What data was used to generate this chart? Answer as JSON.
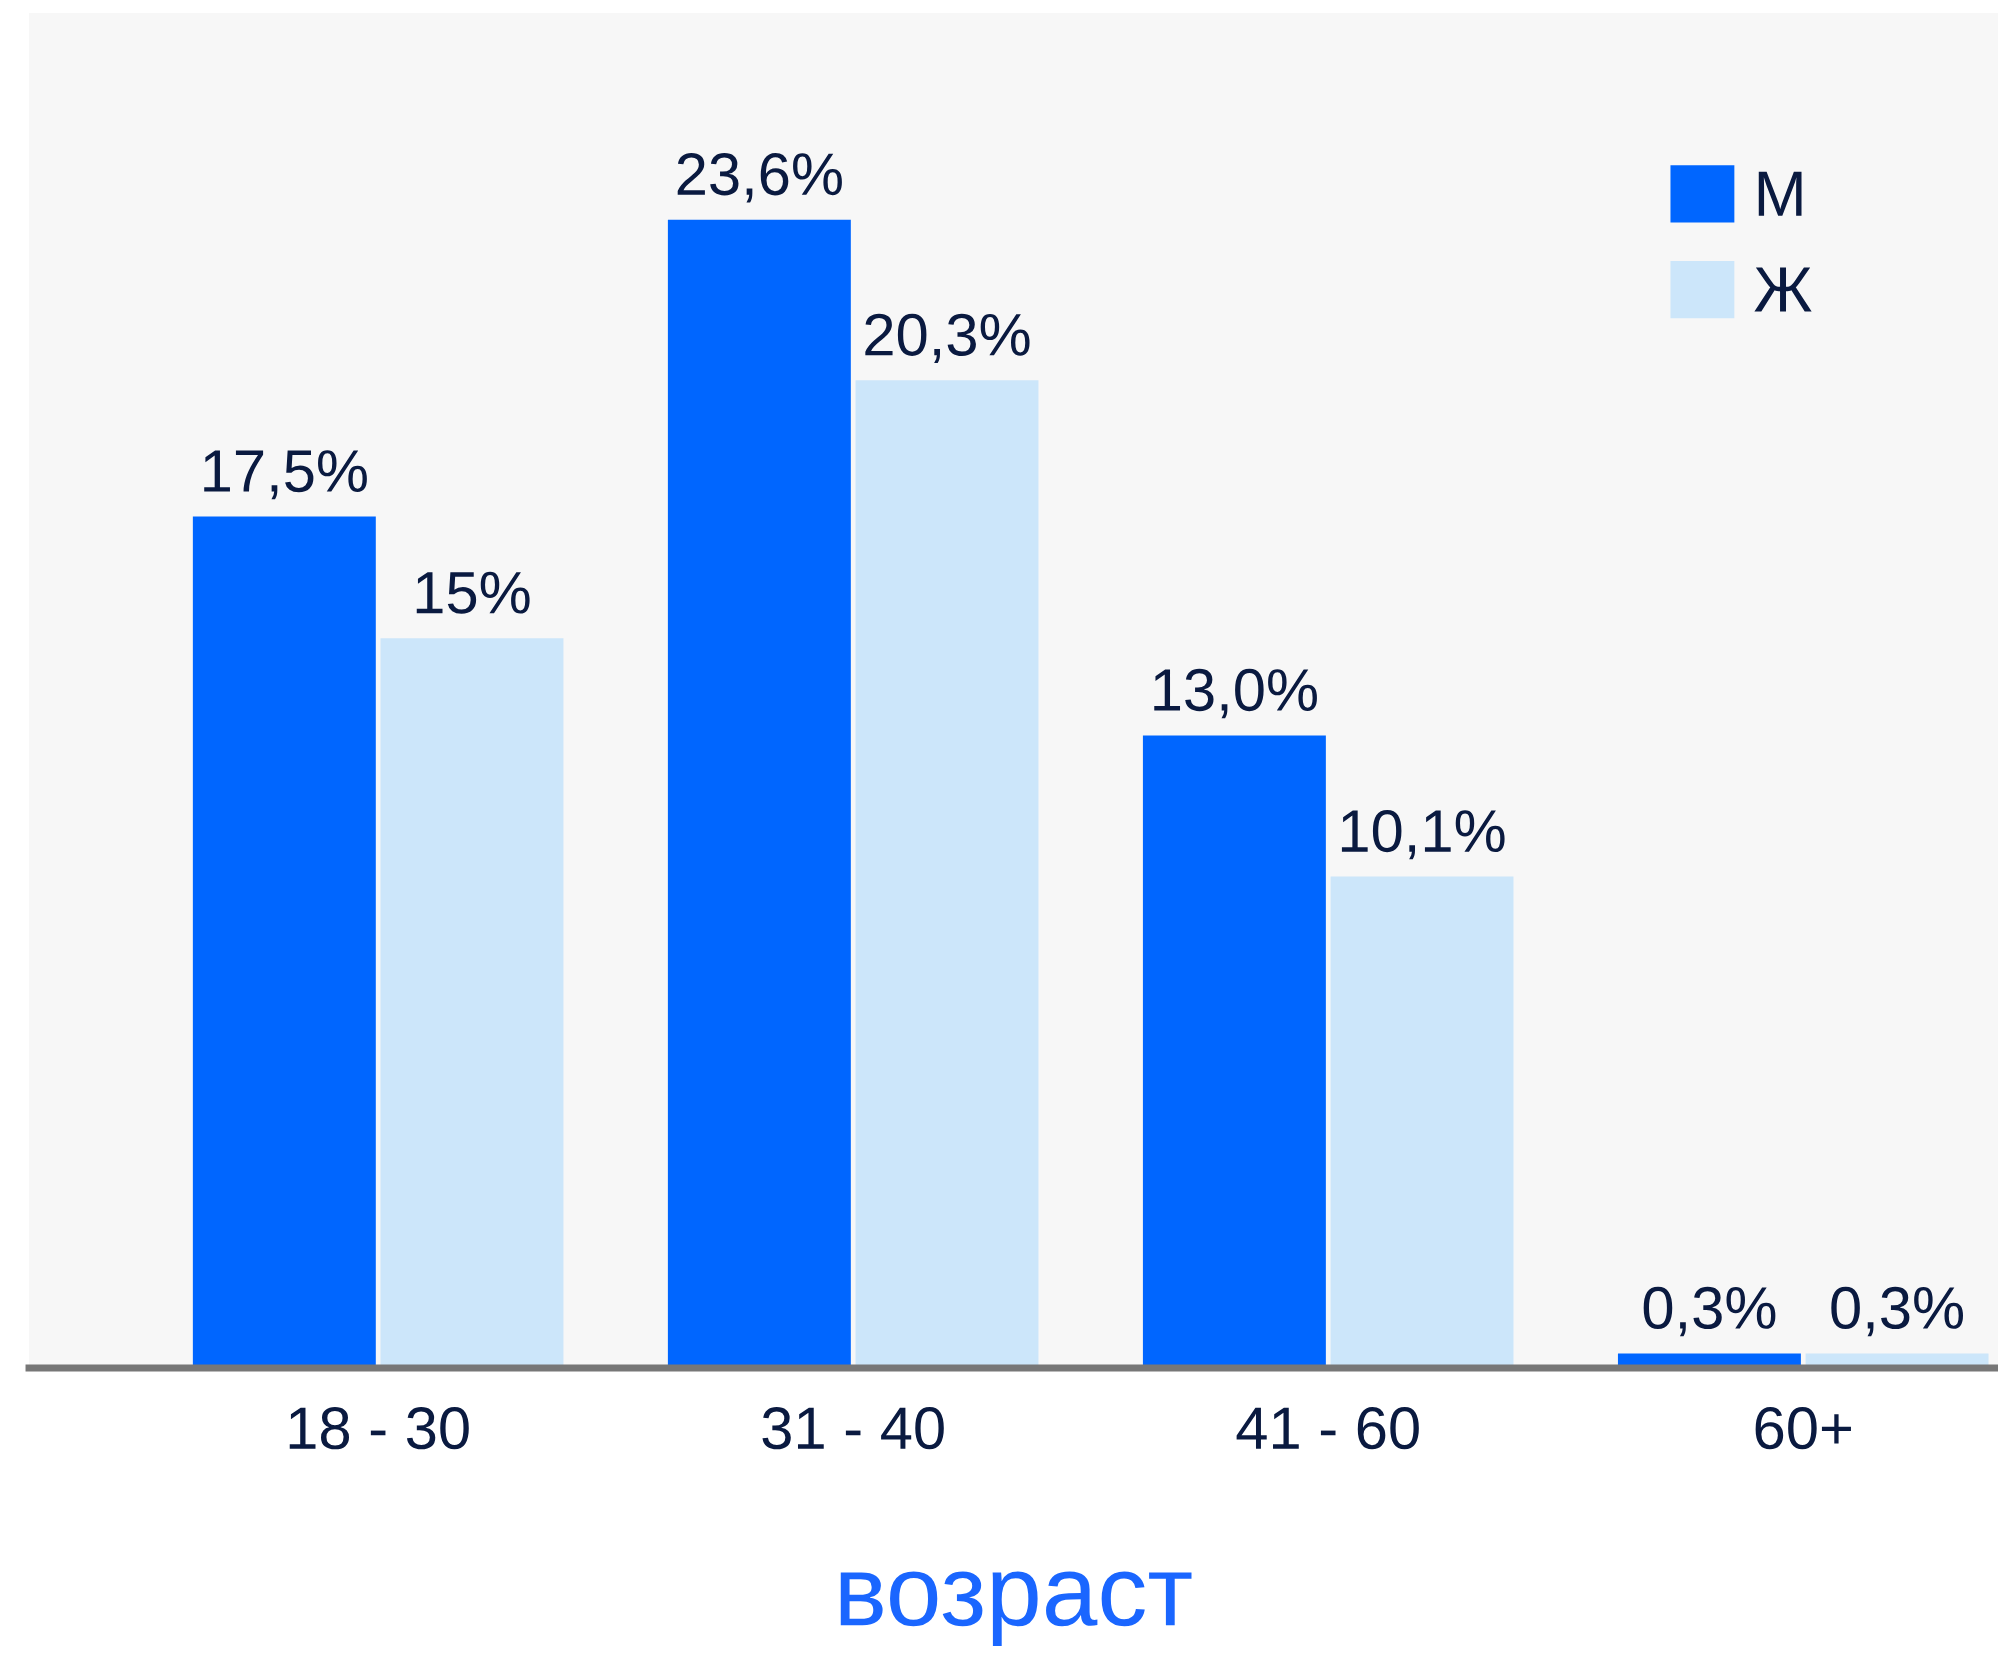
{
  "chart_data": {
    "type": "bar",
    "xlabel": "возраст",
    "categories": [
      "18 - 30",
      "31 - 40",
      "41 - 60",
      "60+"
    ],
    "series": [
      {
        "name": "М",
        "color": "#0066ff",
        "values": [
          17.5,
          23.6,
          13.0,
          0.3
        ],
        "value_labels": [
          "17,5%",
          "23,6%",
          "13,0%",
          "0,3%"
        ]
      },
      {
        "name": "Ж",
        "color": "#cce6fa",
        "values": [
          15,
          20.3,
          10.1,
          0.3
        ],
        "value_labels": [
          "15%",
          "20,3%",
          "10,1%",
          "0,3%"
        ]
      }
    ],
    "legend": "top right",
    "grid": false
  }
}
